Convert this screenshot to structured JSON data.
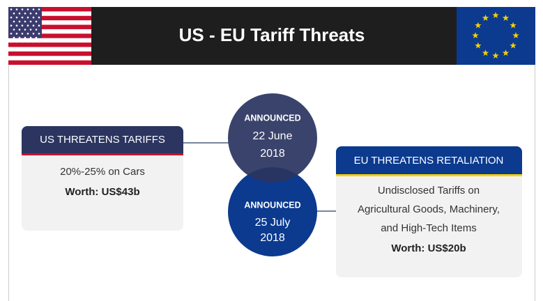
{
  "header": {
    "title": "US - EU Tariff Threats"
  },
  "us": {
    "heading": "US THREATENS TARIFFS",
    "details": [
      "20%-25% on Cars"
    ],
    "worth": "Worth: US$43b"
  },
  "us_date": {
    "label": "ANNOUNCED",
    "date": [
      "22 June",
      "2018"
    ]
  },
  "eu_date": {
    "label": "ANNOUNCED",
    "date": [
      "25 July",
      "2018"
    ]
  },
  "eu": {
    "heading": "EU THREATENS RETALIATION",
    "details": [
      "Undisclosed Tariffs on",
      "Agricultural Goods, Machinery,",
      "and High-Tech Items"
    ],
    "worth": "Worth: US$20b"
  }
}
